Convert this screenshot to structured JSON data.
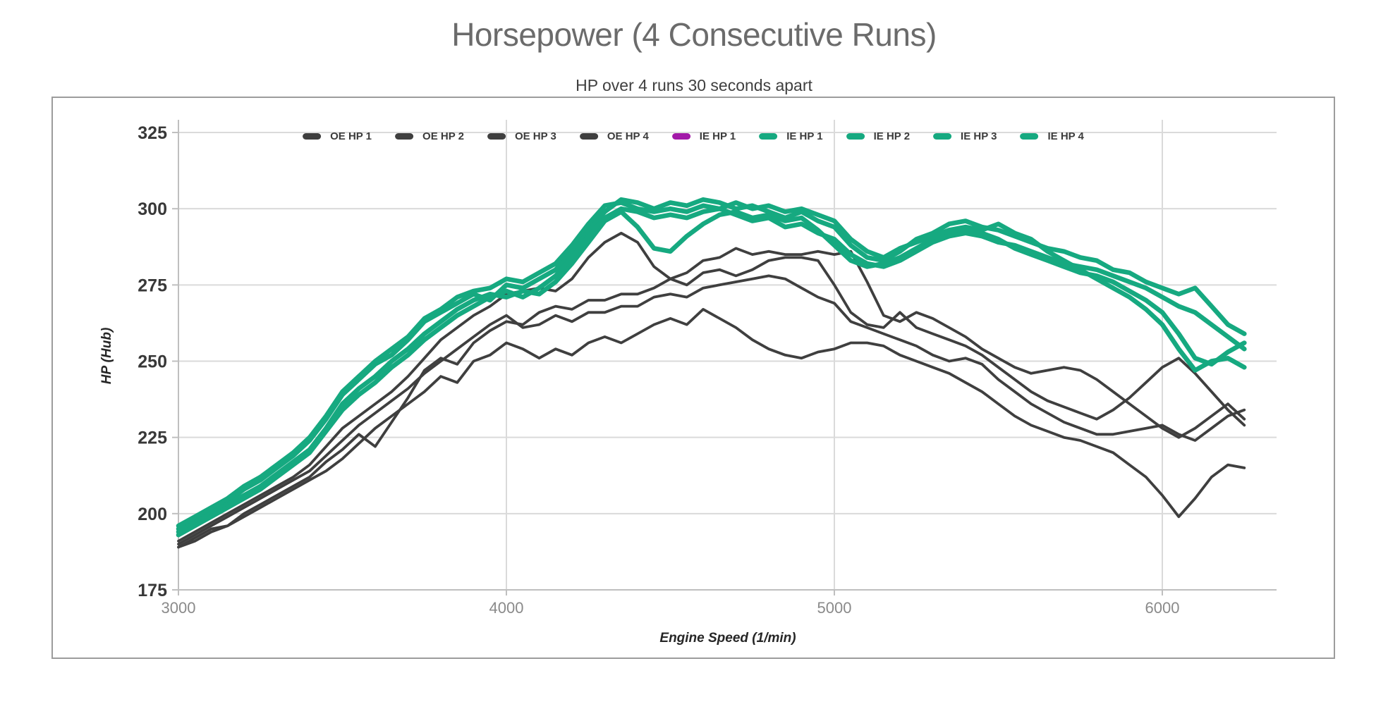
{
  "page": {
    "title": "Horsepower (4 Consecutive Runs)",
    "subtitle": "HP over 4 runs 30 seconds apart"
  },
  "chart_data": {
    "type": "line",
    "title": "Horsepower (4 Consecutive Runs)",
    "subtitle": "HP over 4 runs 30 seconds apart",
    "xlabel": "Engine Speed (1/min)",
    "ylabel": "HP (Hub)",
    "xlim": [
      3000,
      6350
    ],
    "ylim": [
      175,
      325
    ],
    "x_ticks": [
      3000,
      4000,
      5000,
      6000
    ],
    "y_ticks": [
      175,
      200,
      225,
      250,
      275,
      300,
      325
    ],
    "grid": true,
    "legend_position": "top-center-inside",
    "colors": {
      "oe_line": "#3F3F3F",
      "ie_line": "#16A980",
      "ie_hidden": "#A219A8"
    },
    "legend": [
      {
        "label": "OE HP 1",
        "color": "#3F3F3F",
        "plotted": true
      },
      {
        "label": "OE HP 2",
        "color": "#3F3F3F",
        "plotted": true
      },
      {
        "label": "OE HP 3",
        "color": "#3F3F3F",
        "plotted": true
      },
      {
        "label": "OE HP 4",
        "color": "#3F3F3F",
        "plotted": true
      },
      {
        "label": "IE HP 1",
        "color": "#A219A8",
        "plotted": false
      },
      {
        "label": "IE HP 1",
        "color": "#16A980",
        "plotted": true
      },
      {
        "label": "IE HP 2",
        "color": "#16A980",
        "plotted": true
      },
      {
        "label": "IE HP 3",
        "color": "#16A980",
        "plotted": true
      },
      {
        "label": "IE HP 4",
        "color": "#16A980",
        "plotted": true
      }
    ],
    "x": [
      3000,
      3050,
      3100,
      3150,
      3200,
      3250,
      3300,
      3350,
      3400,
      3450,
      3500,
      3550,
      3600,
      3650,
      3700,
      3750,
      3800,
      3850,
      3900,
      3950,
      4000,
      4050,
      4100,
      4150,
      4200,
      4250,
      4300,
      4350,
      4400,
      4450,
      4500,
      4550,
      4600,
      4650,
      4700,
      4750,
      4800,
      4850,
      4900,
      4950,
      5000,
      5050,
      5100,
      5150,
      5200,
      5250,
      5300,
      5350,
      5400,
      5450,
      5500,
      5550,
      5600,
      5650,
      5700,
      5750,
      5800,
      5850,
      5900,
      5950,
      6000,
      6050,
      6100,
      6150,
      6200,
      6250
    ],
    "series": [
      {
        "name": "OE HP 1",
        "color": "#3F3F3F",
        "width": 3.8,
        "values": [
          191,
          194,
          197,
          200,
          203,
          206,
          209,
          212,
          216,
          222,
          228,
          232,
          236,
          240,
          245,
          251,
          257,
          261,
          265,
          268,
          272,
          273,
          274,
          273,
          277,
          284,
          289,
          292,
          289,
          281,
          277,
          279,
          283,
          284,
          287,
          285,
          286,
          285,
          285,
          286,
          285,
          286,
          276,
          265,
          263,
          266,
          264,
          261,
          258,
          254,
          251,
          248,
          246,
          247,
          248,
          247,
          244,
          240,
          236,
          232,
          228,
          225,
          228,
          232,
          236,
          231
        ]
      },
      {
        "name": "OE HP 2",
        "color": "#3F3F3F",
        "width": 3.8,
        "values": [
          189,
          192,
          195,
          196,
          200,
          203,
          206,
          209,
          212,
          217,
          221,
          226,
          222,
          230,
          238,
          247,
          251,
          249,
          256,
          260,
          263,
          262,
          266,
          268,
          267,
          270,
          270,
          272,
          272,
          274,
          277,
          275,
          279,
          280,
          278,
          280,
          283,
          284,
          284,
          283,
          275,
          266,
          262,
          261,
          266,
          261,
          259,
          257,
          255,
          252,
          248,
          244,
          240,
          237,
          235,
          233,
          231,
          234,
          238,
          243,
          248,
          251,
          246,
          240,
          234,
          229
        ]
      },
      {
        "name": "OE HP 3",
        "color": "#3F3F3F",
        "width": 3.8,
        "values": [
          190,
          193,
          196,
          199,
          202,
          205,
          208,
          211,
          214,
          219,
          224,
          229,
          233,
          237,
          241,
          246,
          250,
          254,
          258,
          262,
          265,
          261,
          262,
          265,
          263,
          266,
          266,
          268,
          268,
          271,
          272,
          271,
          274,
          275,
          276,
          277,
          278,
          277,
          274,
          271,
          269,
          263,
          261,
          259,
          257,
          255,
          252,
          250,
          251,
          249,
          244,
          240,
          236,
          233,
          230,
          228,
          226,
          226,
          227,
          228,
          229,
          226,
          224,
          228,
          232,
          234
        ]
      },
      {
        "name": "OE HP 4",
        "color": "#3F3F3F",
        "width": 3.8,
        "values": [
          189,
          191,
          194,
          196,
          199,
          202,
          205,
          208,
          211,
          214,
          218,
          223,
          228,
          232,
          236,
          240,
          245,
          243,
          250,
          252,
          256,
          254,
          251,
          254,
          252,
          256,
          258,
          256,
          259,
          262,
          264,
          262,
          267,
          264,
          261,
          257,
          254,
          252,
          251,
          253,
          254,
          256,
          256,
          255,
          252,
          250,
          248,
          246,
          243,
          240,
          236,
          232,
          229,
          227,
          225,
          224,
          222,
          220,
          216,
          212,
          206,
          199,
          205,
          212,
          216,
          215
        ]
      },
      {
        "name": "IE HP 1",
        "color": "#16A980",
        "width": 6.6,
        "values": [
          195,
          198,
          201,
          204,
          208,
          211,
          215,
          219,
          224,
          231,
          239,
          244,
          249,
          252,
          257,
          263,
          266,
          269,
          272,
          270,
          275,
          274,
          277,
          280,
          286,
          293,
          299,
          303,
          302,
          300,
          302,
          301,
          303,
          302,
          300,
          301,
          299,
          297,
          299,
          296,
          294,
          288,
          284,
          283,
          286,
          290,
          292,
          295,
          296,
          294,
          293,
          291,
          289,
          287,
          286,
          284,
          283,
          280,
          279,
          276,
          274,
          272,
          274,
          268,
          262,
          259
        ]
      },
      {
        "name": "IE HP 2",
        "color": "#16A980",
        "width": 6.6,
        "values": [
          194,
          197,
          200,
          203,
          206,
          209,
          213,
          217,
          221,
          228,
          236,
          241,
          245,
          250,
          254,
          259,
          263,
          267,
          270,
          272,
          271,
          273,
          272,
          276,
          282,
          289,
          296,
          299,
          294,
          287,
          286,
          291,
          295,
          298,
          299,
          297,
          298,
          296,
          297,
          293,
          288,
          283,
          281,
          282,
          284,
          287,
          290,
          292,
          293,
          292,
          290,
          287,
          285,
          283,
          281,
          279,
          278,
          276,
          273,
          270,
          266,
          259,
          251,
          249,
          253,
          256
        ]
      },
      {
        "name": "IE HP 3",
        "color": "#16A980",
        "width": 6.6,
        "values": [
          193,
          196,
          199,
          202,
          205,
          208,
          212,
          216,
          220,
          227,
          234,
          239,
          243,
          248,
          252,
          257,
          261,
          265,
          268,
          271,
          273,
          271,
          274,
          278,
          284,
          291,
          297,
          300,
          299,
          297,
          298,
          297,
          299,
          300,
          302,
          300,
          301,
          299,
          300,
          298,
          296,
          290,
          286,
          284,
          287,
          289,
          291,
          293,
          294,
          293,
          295,
          292,
          290,
          286,
          283,
          280,
          277,
          274,
          271,
          267,
          262,
          254,
          247,
          250,
          251,
          248
        ]
      },
      {
        "name": "IE HP 4",
        "color": "#16A980",
        "width": 6.6,
        "values": [
          196,
          199,
          202,
          205,
          209,
          212,
          216,
          220,
          225,
          232,
          240,
          245,
          250,
          254,
          258,
          264,
          267,
          271,
          273,
          274,
          277,
          276,
          279,
          282,
          288,
          295,
          301,
          302,
          300,
          299,
          300,
          299,
          301,
          300,
          298,
          296,
          297,
          294,
          295,
          292,
          290,
          285,
          282,
          281,
          283,
          286,
          289,
          291,
          292,
          291,
          289,
          288,
          286,
          284,
          282,
          281,
          280,
          278,
          276,
          274,
          271,
          268,
          266,
          262,
          258,
          254
        ]
      }
    ]
  }
}
